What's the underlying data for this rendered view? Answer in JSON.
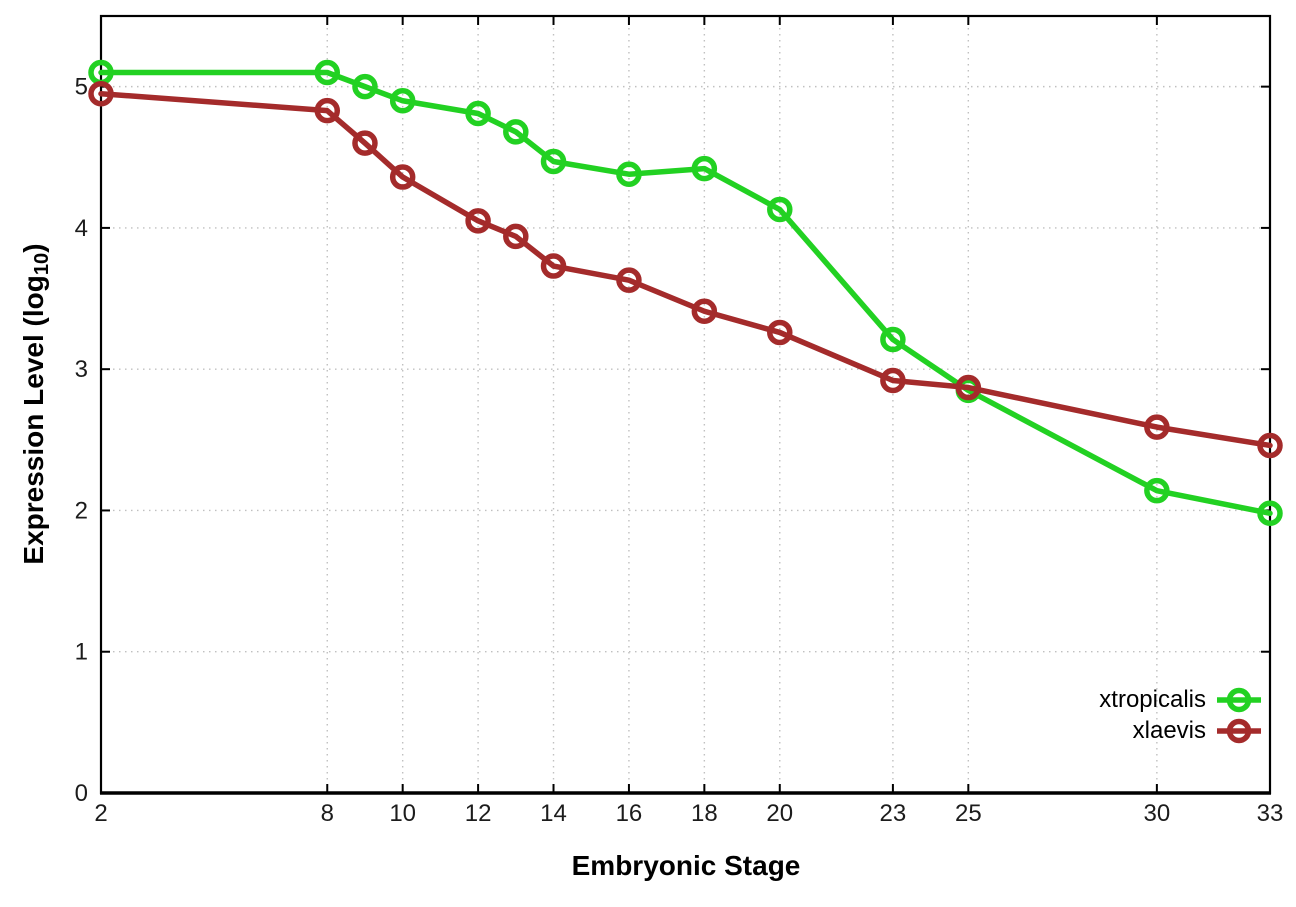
{
  "chart_data": {
    "type": "line",
    "title": "",
    "xlabel": "Embryonic Stage",
    "ylabel": "Expression Level (log10)",
    "ylabel_prefix": "Expression Level (log",
    "ylabel_subscript": "10",
    "ylabel_suffix": ")",
    "x": [
      2,
      8,
      9,
      10,
      12,
      13,
      14,
      16,
      18,
      20,
      23,
      25,
      30,
      33
    ],
    "xticks": [
      2,
      8,
      10,
      12,
      14,
      16,
      18,
      20,
      23,
      25,
      30,
      33
    ],
    "yticks": [
      0,
      1,
      2,
      3,
      4,
      5
    ],
    "xlim": [
      2,
      33
    ],
    "ylim": [
      0,
      5.5
    ],
    "grid": true,
    "legend_position": "bottom-right-inside",
    "marker": "open-circle",
    "background": "#ffffff",
    "series": [
      {
        "name": "xtropicalis",
        "color": "#22d122",
        "values": [
          5.1,
          5.1,
          5.0,
          4.9,
          4.81,
          4.68,
          4.47,
          4.38,
          4.42,
          4.13,
          3.21,
          2.85,
          2.14,
          1.98
        ]
      },
      {
        "name": "xlaevis",
        "color": "#a42b2b",
        "values": [
          4.95,
          4.83,
          4.6,
          4.36,
          4.05,
          3.94,
          3.73,
          3.63,
          3.41,
          3.26,
          2.92,
          2.87,
          2.59,
          2.46
        ]
      }
    ]
  }
}
